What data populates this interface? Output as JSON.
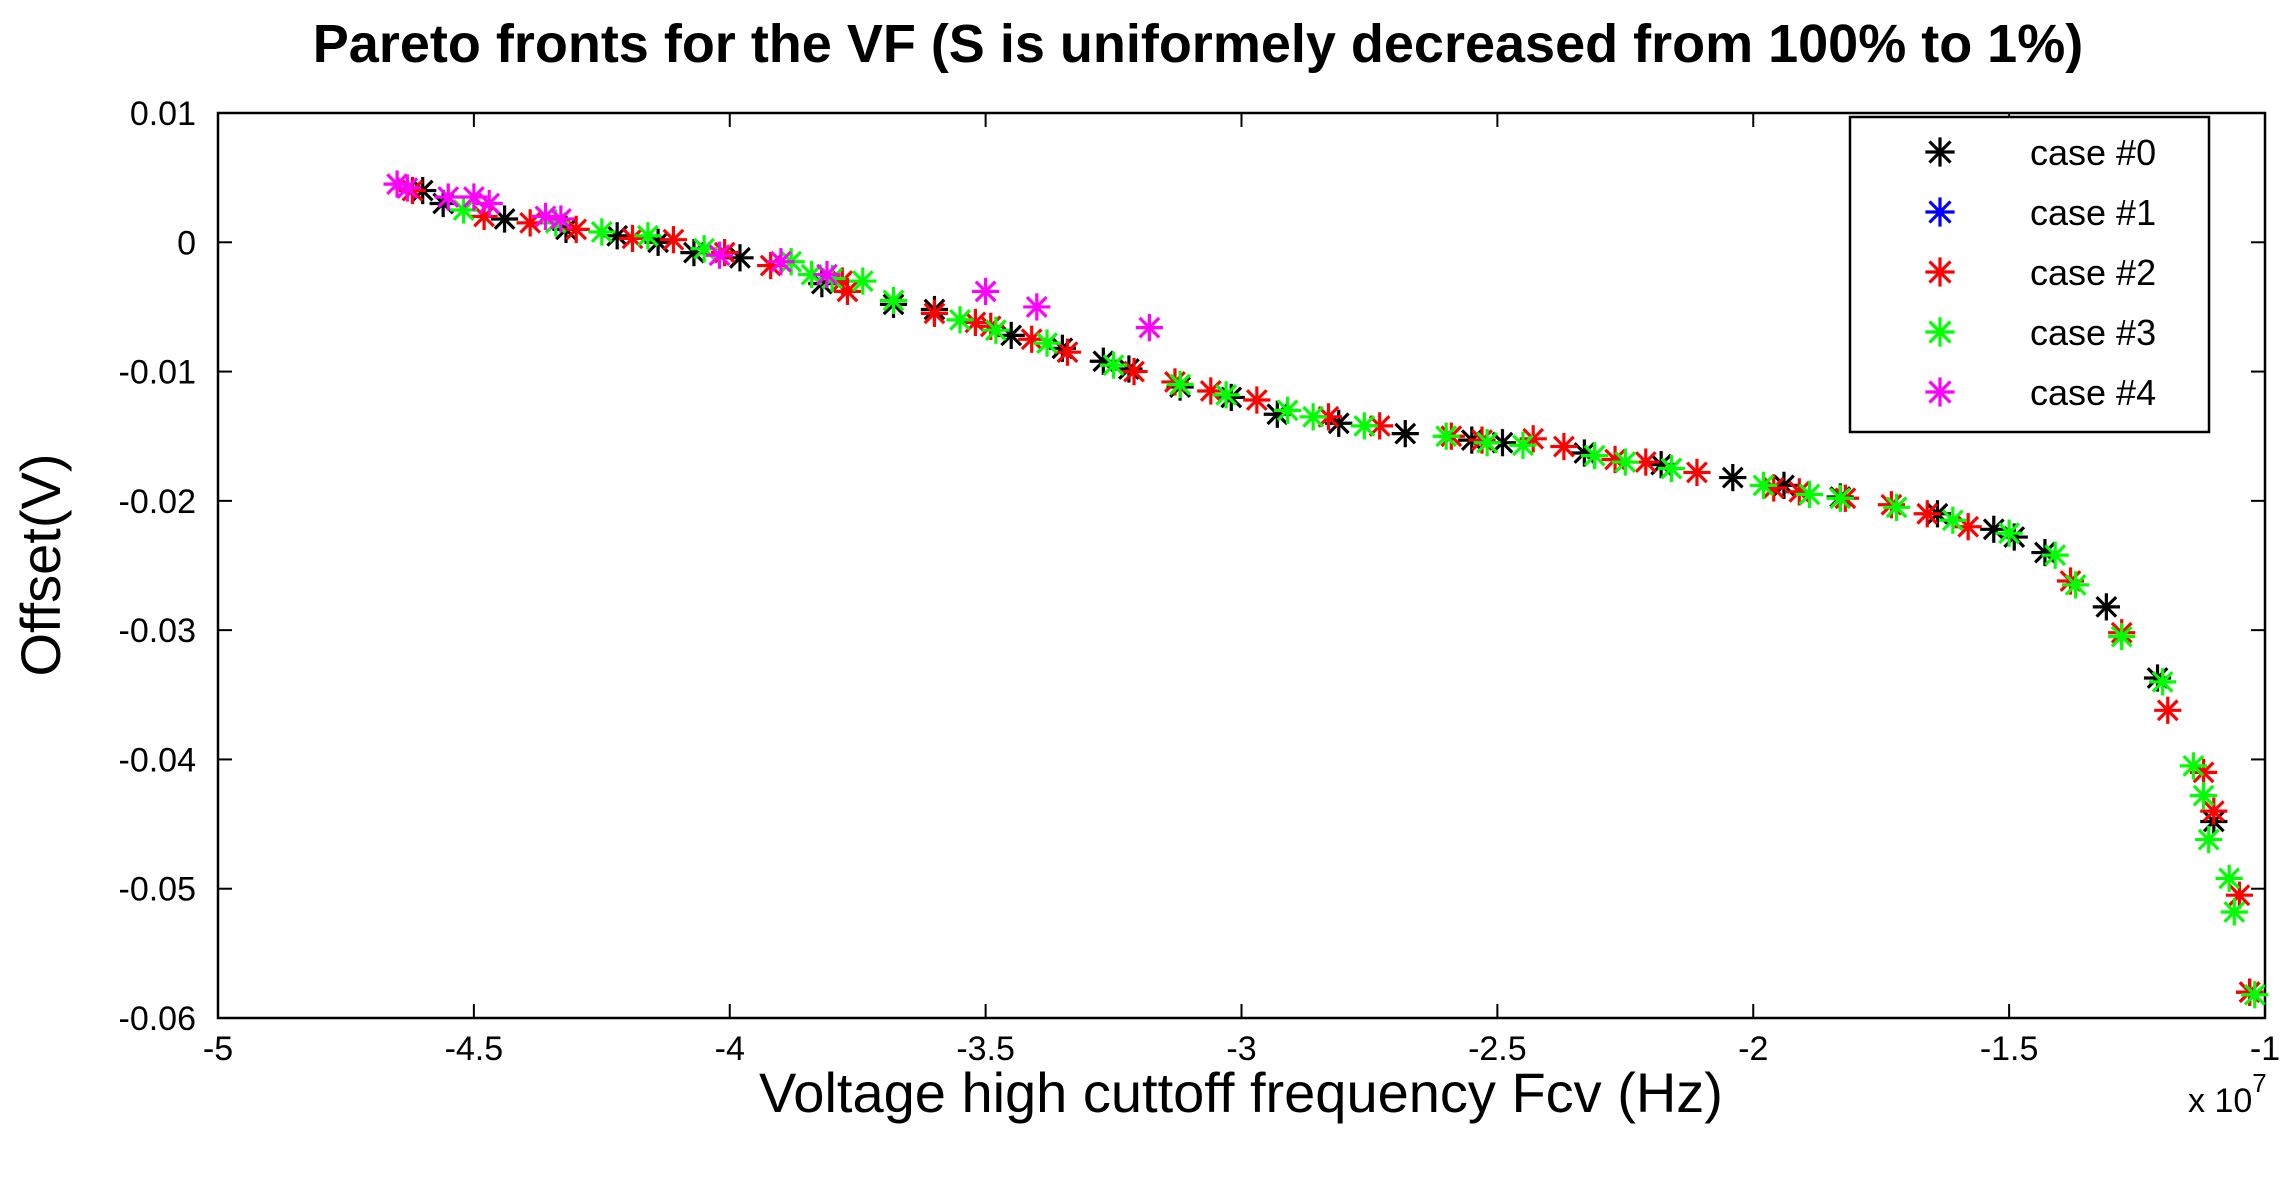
{
  "chart_data": {
    "type": "scatter",
    "title": "Pareto fronts for the VF (S is uniformely decreased from 100% to 1%)",
    "xlabel": "Voltage high cuttoff frequency Fcv (Hz)",
    "ylabel": "Offset(V)",
    "x_multiplier": "x 10",
    "x_multiplier_exp": "7",
    "xlim": [
      -5,
      -1
    ],
    "ylim": [
      -0.06,
      0.01
    ],
    "xticks": [
      -5,
      -4.5,
      -4,
      -3.5,
      -3,
      -2.5,
      -2,
      -1.5,
      -1
    ],
    "xtick_labels": [
      "-5",
      "-4.5",
      "-4",
      "-3.5",
      "-3",
      "-2.5",
      "-2",
      "-1.5",
      "-1"
    ],
    "yticks": [
      0.01,
      0,
      -0.01,
      -0.02,
      -0.03,
      -0.04,
      -0.05,
      -0.06
    ],
    "ytick_labels": [
      "0.01",
      "0",
      "-0.01",
      "-0.02",
      "-0.03",
      "-0.04",
      "-0.05",
      "-0.06"
    ],
    "legend_position": "top-right",
    "series": [
      {
        "name": "case #0",
        "color": "#000000",
        "marker": "asterisk",
        "points": [
          [
            -4.6,
            0.004
          ],
          [
            -4.56,
            0.003
          ],
          [
            -4.44,
            0.0018
          ],
          [
            -4.32,
            0.001
          ],
          [
            -4.22,
            0.0005
          ],
          [
            -4.14,
            0.0
          ],
          [
            -4.07,
            -0.0008
          ],
          [
            -3.98,
            -0.0012
          ],
          [
            -3.82,
            -0.0032
          ],
          [
            -3.68,
            -0.0048
          ],
          [
            -3.6,
            -0.0052
          ],
          [
            -3.45,
            -0.0072
          ],
          [
            -3.35,
            -0.0082
          ],
          [
            -3.27,
            -0.0092
          ],
          [
            -3.22,
            -0.0098
          ],
          [
            -3.12,
            -0.0112
          ],
          [
            -3.02,
            -0.012
          ],
          [
            -2.93,
            -0.0133
          ],
          [
            -2.81,
            -0.014
          ],
          [
            -2.68,
            -0.0148
          ],
          [
            -2.55,
            -0.0153
          ],
          [
            -2.49,
            -0.0155
          ],
          [
            -2.33,
            -0.0163
          ],
          [
            -2.18,
            -0.0172
          ],
          [
            -2.04,
            -0.0182
          ],
          [
            -1.94,
            -0.0188
          ],
          [
            -1.83,
            -0.0197
          ],
          [
            -1.64,
            -0.021
          ],
          [
            -1.53,
            -0.0222
          ],
          [
            -1.49,
            -0.0228
          ],
          [
            -1.43,
            -0.024
          ],
          [
            -1.31,
            -0.0282
          ],
          [
            -1.21,
            -0.0337
          ],
          [
            -1.1,
            -0.0448
          ],
          [
            -1.03,
            -0.058
          ]
        ]
      },
      {
        "name": "case #1",
        "color": "#0000ff",
        "marker": "asterisk",
        "points": []
      },
      {
        "name": "case #2",
        "color": "#ff0000",
        "marker": "asterisk",
        "points": [
          [
            -4.62,
            0.004
          ],
          [
            -4.48,
            0.002
          ],
          [
            -4.39,
            0.0015
          ],
          [
            -4.3,
            0.001
          ],
          [
            -4.19,
            0.0003
          ],
          [
            -4.11,
            0.0002
          ],
          [
            -4.01,
            -0.0008
          ],
          [
            -3.92,
            -0.0018
          ],
          [
            -3.78,
            -0.003
          ],
          [
            -3.77,
            -0.0038
          ],
          [
            -3.6,
            -0.0055
          ],
          [
            -3.52,
            -0.0062
          ],
          [
            -3.49,
            -0.0065
          ],
          [
            -3.41,
            -0.0075
          ],
          [
            -3.34,
            -0.0085
          ],
          [
            -3.21,
            -0.01
          ],
          [
            -3.13,
            -0.0108
          ],
          [
            -3.06,
            -0.0115
          ],
          [
            -2.97,
            -0.0122
          ],
          [
            -2.83,
            -0.0135
          ],
          [
            -2.73,
            -0.0142
          ],
          [
            -2.59,
            -0.015
          ],
          [
            -2.53,
            -0.0153
          ],
          [
            -2.43,
            -0.0152
          ],
          [
            -2.37,
            -0.0158
          ],
          [
            -2.27,
            -0.0168
          ],
          [
            -2.21,
            -0.017
          ],
          [
            -2.11,
            -0.0178
          ],
          [
            -1.96,
            -0.019
          ],
          [
            -1.91,
            -0.0193
          ],
          [
            -1.82,
            -0.0198
          ],
          [
            -1.73,
            -0.0203
          ],
          [
            -1.66,
            -0.021
          ],
          [
            -1.58,
            -0.022
          ],
          [
            -1.38,
            -0.0262
          ],
          [
            -1.28,
            -0.0302
          ],
          [
            -1.19,
            -0.0362
          ],
          [
            -1.12,
            -0.041
          ],
          [
            -1.1,
            -0.044
          ],
          [
            -1.05,
            -0.0505
          ],
          [
            -1.03,
            -0.058
          ]
        ]
      },
      {
        "name": "case #3",
        "color": "#00ff00",
        "marker": "asterisk",
        "points": [
          [
            -4.52,
            0.0025
          ],
          [
            -4.34,
            0.0015
          ],
          [
            -4.25,
            0.0008
          ],
          [
            -4.16,
            0.0005
          ],
          [
            -4.05,
            -0.0005
          ],
          [
            -3.88,
            -0.0015
          ],
          [
            -3.84,
            -0.0025
          ],
          [
            -3.8,
            -0.0028
          ],
          [
            -3.74,
            -0.003
          ],
          [
            -3.68,
            -0.0045
          ],
          [
            -3.55,
            -0.006
          ],
          [
            -3.48,
            -0.0068
          ],
          [
            -3.38,
            -0.0078
          ],
          [
            -3.25,
            -0.0095
          ],
          [
            -3.12,
            -0.011
          ],
          [
            -3.03,
            -0.0118
          ],
          [
            -2.91,
            -0.013
          ],
          [
            -2.86,
            -0.0135
          ],
          [
            -2.76,
            -0.0142
          ],
          [
            -2.6,
            -0.015
          ],
          [
            -2.52,
            -0.0155
          ],
          [
            -2.45,
            -0.0157
          ],
          [
            -2.31,
            -0.0165
          ],
          [
            -2.25,
            -0.017
          ],
          [
            -2.16,
            -0.0175
          ],
          [
            -1.98,
            -0.0188
          ],
          [
            -1.89,
            -0.0195
          ],
          [
            -1.83,
            -0.0198
          ],
          [
            -1.72,
            -0.0205
          ],
          [
            -1.61,
            -0.0215
          ],
          [
            -1.5,
            -0.0225
          ],
          [
            -1.41,
            -0.0242
          ],
          [
            -1.37,
            -0.0265
          ],
          [
            -1.28,
            -0.0305
          ],
          [
            -1.2,
            -0.034
          ],
          [
            -1.14,
            -0.0405
          ],
          [
            -1.12,
            -0.0428
          ],
          [
            -1.11,
            -0.0462
          ],
          [
            -1.07,
            -0.0492
          ],
          [
            -1.06,
            -0.0518
          ],
          [
            -1.02,
            -0.0582
          ]
        ]
      },
      {
        "name": "case #4",
        "color": "#ff00ff",
        "marker": "asterisk",
        "points": [
          [
            -4.65,
            0.0045
          ],
          [
            -4.63,
            0.0042
          ],
          [
            -4.55,
            0.0035
          ],
          [
            -4.5,
            0.0035
          ],
          [
            -4.47,
            0.003
          ],
          [
            -4.36,
            0.002
          ],
          [
            -4.33,
            0.0018
          ],
          [
            -4.02,
            -0.001
          ],
          [
            -3.9,
            -0.0015
          ],
          [
            -3.81,
            -0.0025
          ],
          [
            -3.5,
            -0.0038
          ],
          [
            -3.4,
            -0.005
          ],
          [
            -3.18,
            -0.0066
          ]
        ]
      }
    ]
  }
}
